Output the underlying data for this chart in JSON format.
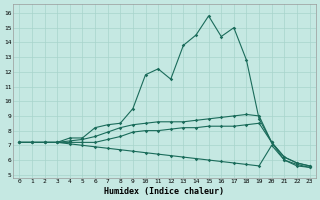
{
  "xlabel": "Humidex (Indice chaleur)",
  "ylabel": "",
  "background_color": "#c5e8e2",
  "grid_color": "#a8d4cc",
  "line_color": "#1a6b5a",
  "xlim": [
    -0.5,
    23.5
  ],
  "ylim": [
    4.8,
    16.6
  ],
  "yticks": [
    5,
    6,
    7,
    8,
    9,
    10,
    11,
    12,
    13,
    14,
    15,
    16
  ],
  "xticks": [
    0,
    1,
    2,
    3,
    4,
    5,
    6,
    7,
    8,
    9,
    10,
    11,
    12,
    13,
    14,
    15,
    16,
    17,
    18,
    19,
    20,
    21,
    22,
    23
  ],
  "line1_x": [
    0,
    1,
    2,
    3,
    4,
    5,
    6,
    7,
    8,
    9,
    10,
    11,
    12,
    13,
    14,
    15,
    16,
    17,
    18,
    19,
    20,
    21,
    22,
    23
  ],
  "line1_y": [
    7.2,
    7.2,
    7.2,
    7.2,
    7.5,
    7.5,
    8.2,
    8.4,
    8.5,
    9.5,
    11.8,
    12.2,
    11.5,
    13.8,
    14.5,
    15.8,
    14.4,
    15.0,
    12.8,
    8.8,
    7.2,
    6.2,
    5.8,
    5.6
  ],
  "line2_x": [
    0,
    1,
    2,
    3,
    4,
    5,
    6,
    7,
    8,
    9,
    10,
    11,
    12,
    13,
    14,
    15,
    16,
    17,
    18,
    19,
    20,
    21,
    22,
    23
  ],
  "line2_y": [
    7.2,
    7.2,
    7.2,
    7.2,
    7.3,
    7.4,
    7.6,
    7.9,
    8.2,
    8.4,
    8.5,
    8.6,
    8.6,
    8.6,
    8.7,
    8.8,
    8.9,
    9.0,
    9.1,
    9.0,
    7.2,
    6.2,
    5.8,
    5.6
  ],
  "line3_x": [
    0,
    1,
    2,
    3,
    4,
    5,
    6,
    7,
    8,
    9,
    10,
    11,
    12,
    13,
    14,
    15,
    16,
    17,
    18,
    19,
    20,
    21,
    22,
    23
  ],
  "line3_y": [
    7.2,
    7.2,
    7.2,
    7.2,
    7.2,
    7.2,
    7.2,
    7.4,
    7.6,
    7.9,
    8.0,
    8.0,
    8.1,
    8.2,
    8.2,
    8.3,
    8.3,
    8.3,
    8.4,
    8.5,
    7.2,
    6.0,
    5.7,
    5.5
  ],
  "line4_x": [
    0,
    1,
    2,
    3,
    4,
    5,
    6,
    7,
    8,
    9,
    10,
    11,
    12,
    13,
    14,
    15,
    16,
    17,
    18,
    19,
    20,
    21,
    22,
    23
  ],
  "line4_y": [
    7.2,
    7.2,
    7.2,
    7.2,
    7.1,
    7.0,
    6.9,
    6.8,
    6.7,
    6.6,
    6.5,
    6.4,
    6.3,
    6.2,
    6.1,
    6.0,
    5.9,
    5.8,
    5.7,
    5.6,
    7.0,
    6.0,
    5.6,
    5.5
  ]
}
